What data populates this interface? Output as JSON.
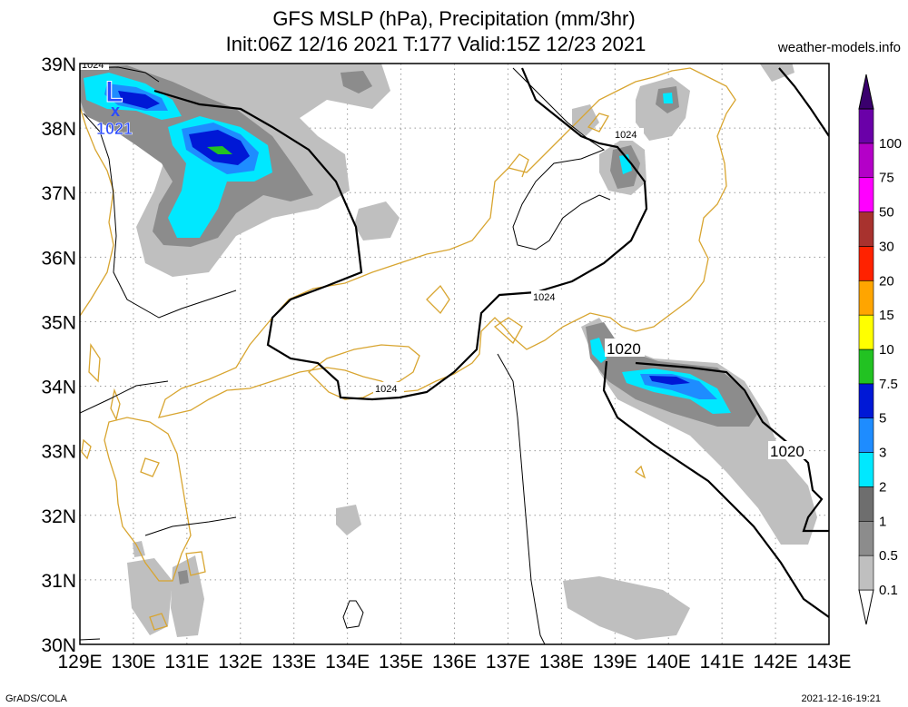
{
  "header": {
    "title_line1": "GFS MSLP (hPa), Precipitation (mm/3hr)",
    "title_line2": "Init:06Z 12/16 2021 T:177 Valid:15Z 12/23 2021",
    "site": "weather-models.info"
  },
  "footer": {
    "left": "GrADS/COLA",
    "right": "2021-12-16-19:21"
  },
  "axes": {
    "lon_labels": [
      "129E",
      "130E",
      "131E",
      "132E",
      "133E",
      "134E",
      "135E",
      "136E",
      "137E",
      "138E",
      "139E",
      "140E",
      "141E",
      "142E",
      "143E"
    ],
    "lat_labels": [
      "30N",
      "31N",
      "32N",
      "33N",
      "34N",
      "35N",
      "36N",
      "37N",
      "38N",
      "39N"
    ],
    "lon_range": [
      129,
      143
    ],
    "lat_range": [
      30,
      39
    ],
    "grid": "dotted"
  },
  "colorbar": {
    "levels": [
      "0.1",
      "0.5",
      "1",
      "2",
      "3",
      "5",
      "7.5",
      "10",
      "15",
      "20",
      "30",
      "50",
      "75",
      "100"
    ],
    "colors": [
      "#bfbfbf",
      "#8c8c8c",
      "#6e6e6e",
      "#00e8ff",
      "#1e8cff",
      "#0018d6",
      "#22c222",
      "#ffff00",
      "#ffa500",
      "#ff2200",
      "#a8322e",
      "#ff00ff",
      "#b400c8",
      "#6a00a8",
      "#3a006e"
    ]
  },
  "isobars": {
    "labels": [
      "1024",
      "1024",
      "1024",
      "1024",
      "1020",
      "1020"
    ]
  },
  "low_center": {
    "symbol": "L",
    "marker": "x",
    "value": "1021"
  },
  "colors": {
    "coast": "#d8a530",
    "isobar": "#000000",
    "grid": "#9a9a9a"
  }
}
